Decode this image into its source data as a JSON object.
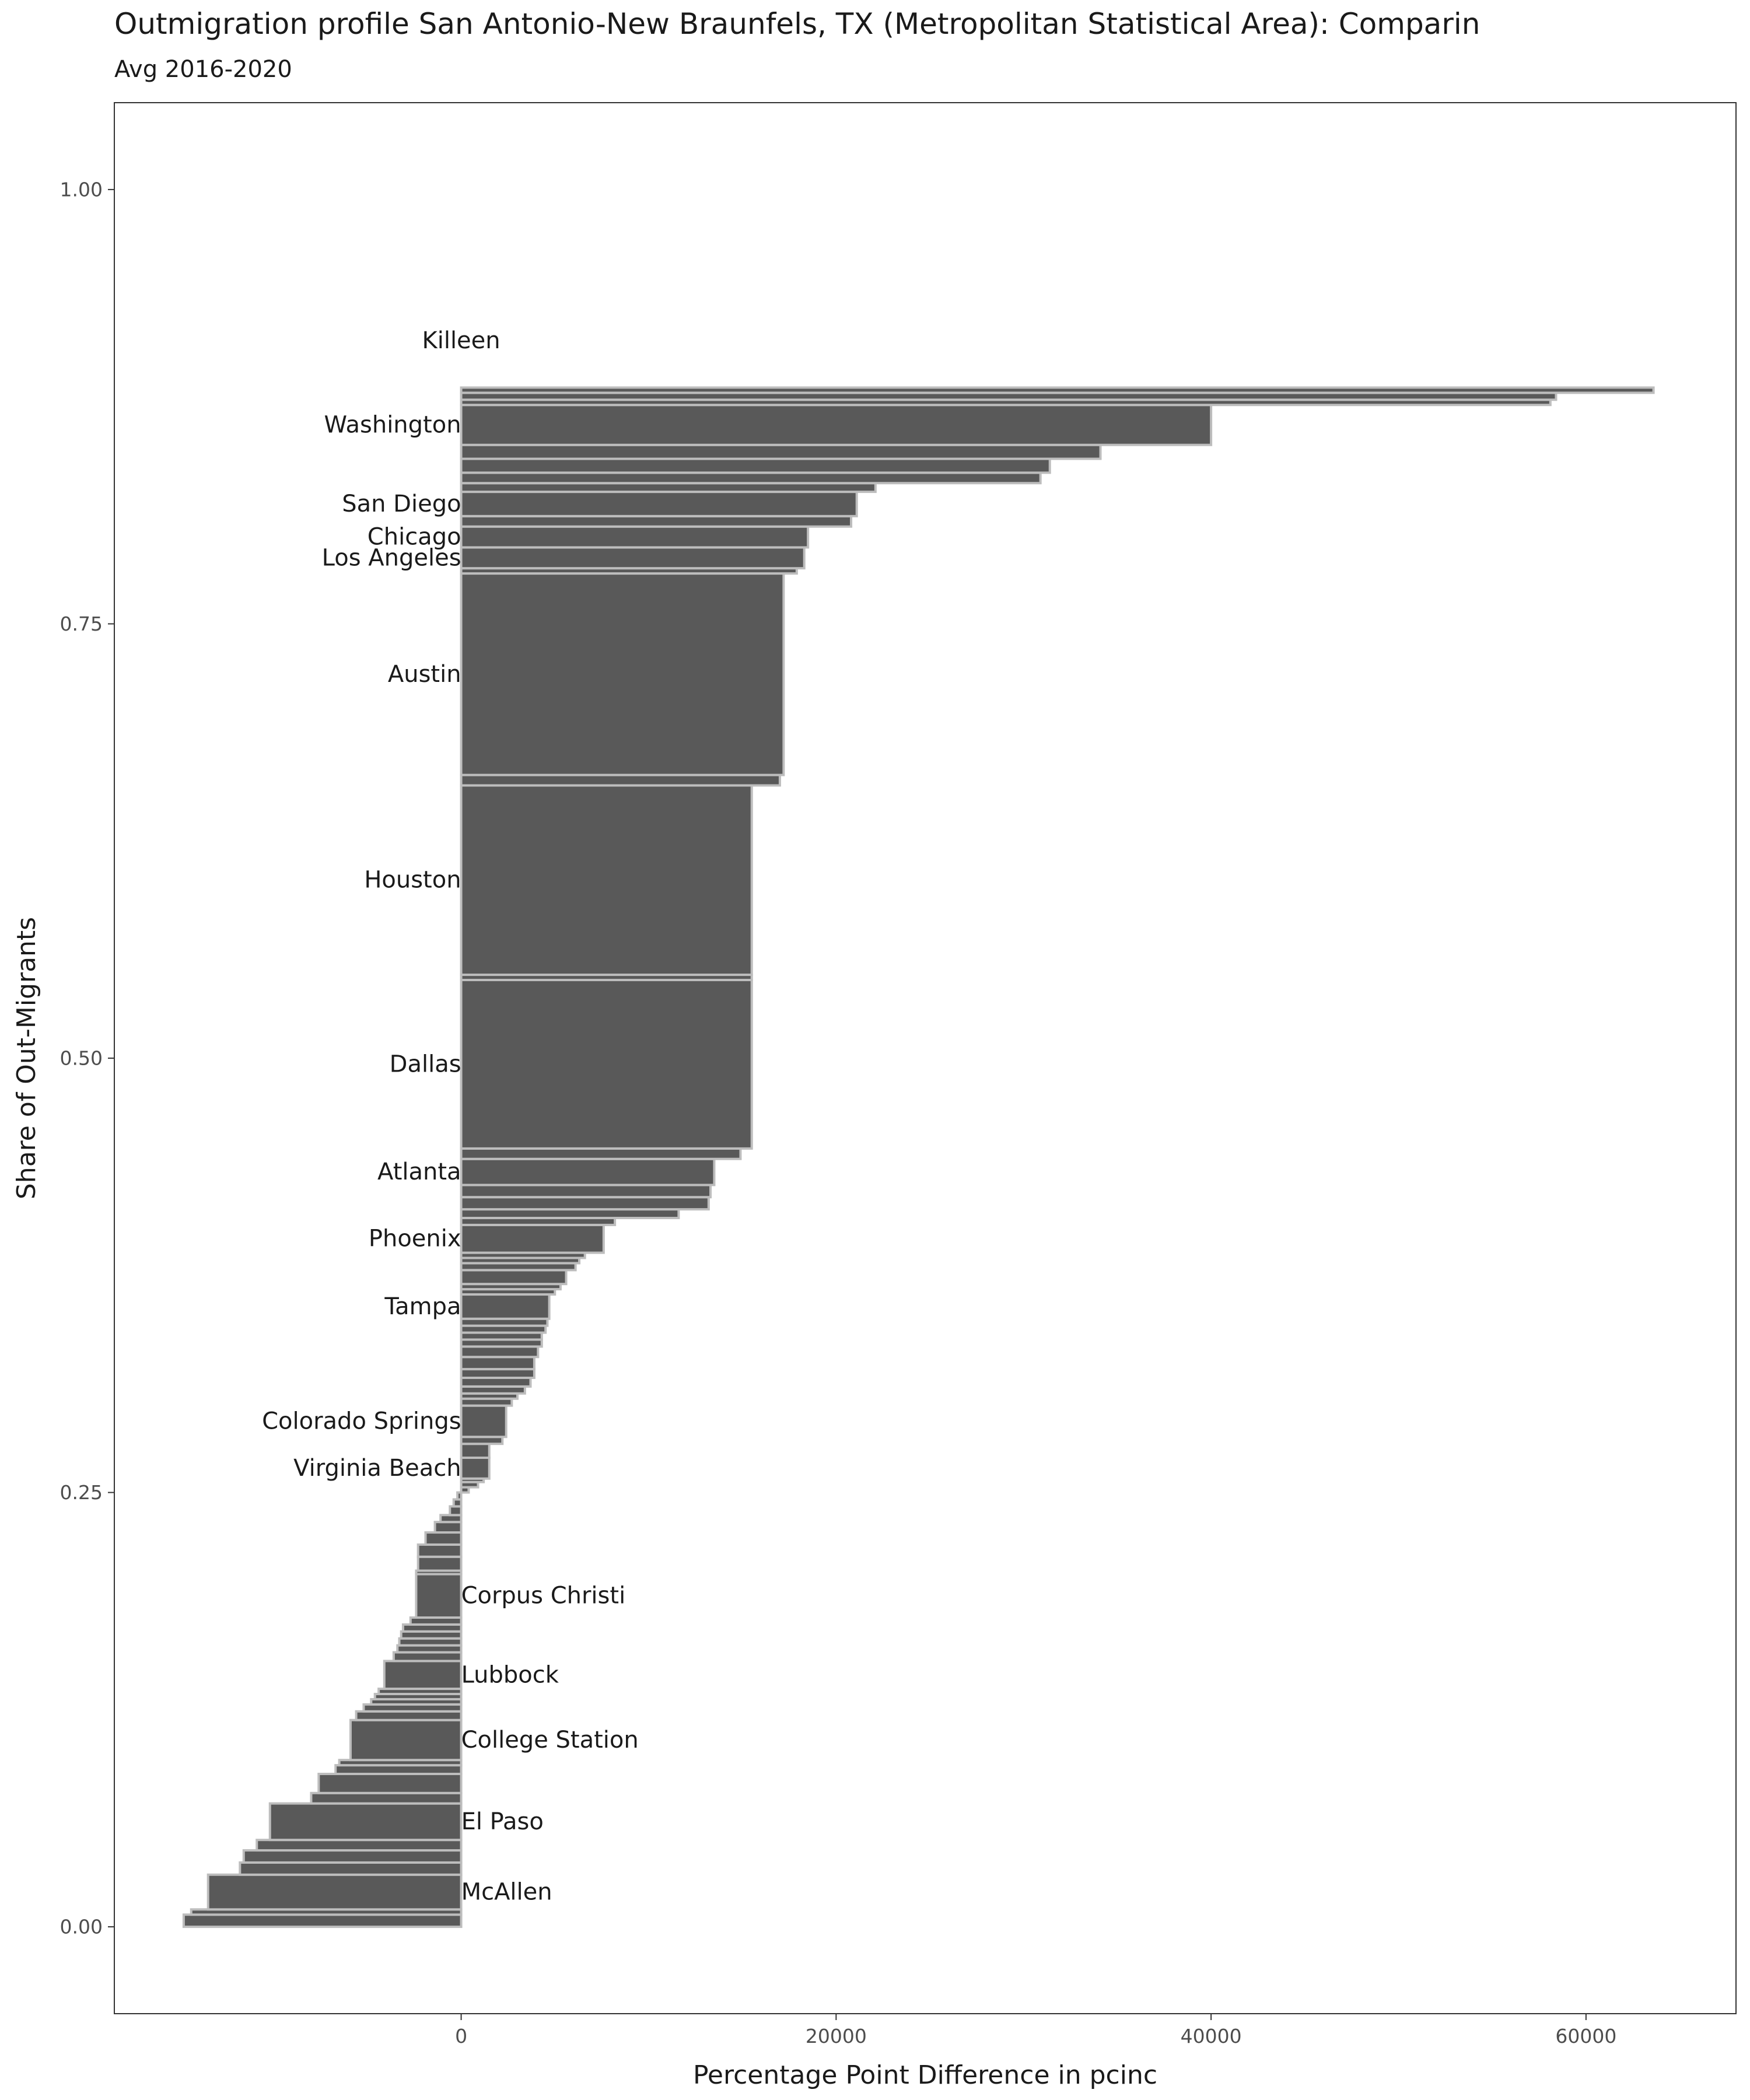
{
  "chart_data": {
    "type": "bar",
    "title": "Outmigration profile San Antonio-New Braunfels, TX (Metropolitan Statistical Area): Comparin",
    "subtitle": "Avg 2016-2020",
    "xlabel": "Percentage Point Difference in pcinc",
    "ylabel": "Share of Out-Migrants",
    "xlim": [
      -18500,
      68000
    ],
    "ylim": [
      -0.05,
      1.05
    ],
    "xticks": [
      0,
      20000,
      40000,
      60000
    ],
    "xtick_labels": [
      "0",
      "20000",
      "40000",
      "60000"
    ],
    "yticks": [
      0.0,
      0.25,
      0.5,
      0.75,
      1.0
    ],
    "ytick_labels": [
      "0.00",
      "0.25",
      "0.50",
      "0.75",
      "1.00"
    ],
    "grid": false,
    "fill_color": "#595959",
    "border_color": "#bdbdbd",
    "bars": [
      {
        "y0": 0.0,
        "y1": 0.007,
        "value": -14800,
        "label": ""
      },
      {
        "y0": 0.007,
        "y1": 0.01,
        "value": -14400,
        "label": ""
      },
      {
        "y0": 0.01,
        "y1": 0.03,
        "value": -13500,
        "label": "McAllen"
      },
      {
        "y0": 0.03,
        "y1": 0.037,
        "value": -11800,
        "label": ""
      },
      {
        "y0": 0.037,
        "y1": 0.044,
        "value": -11600,
        "label": ""
      },
      {
        "y0": 0.044,
        "y1": 0.05,
        "value": -10900,
        "label": ""
      },
      {
        "y0": 0.05,
        "y1": 0.071,
        "value": -10200,
        "label": "El Paso"
      },
      {
        "y0": 0.071,
        "y1": 0.077,
        "value": -8000,
        "label": ""
      },
      {
        "y0": 0.077,
        "y1": 0.088,
        "value": -7600,
        "label": ""
      },
      {
        "y0": 0.088,
        "y1": 0.093,
        "value": -6700,
        "label": ""
      },
      {
        "y0": 0.093,
        "y1": 0.096,
        "value": -6500,
        "label": ""
      },
      {
        "y0": 0.096,
        "y1": 0.119,
        "value": -5900,
        "label": "College Station"
      },
      {
        "y0": 0.119,
        "y1": 0.124,
        "value": -5600,
        "label": ""
      },
      {
        "y0": 0.124,
        "y1": 0.128,
        "value": -5200,
        "label": ""
      },
      {
        "y0": 0.128,
        "y1": 0.131,
        "value": -4800,
        "label": ""
      },
      {
        "y0": 0.131,
        "y1": 0.134,
        "value": -4600,
        "label": ""
      },
      {
        "y0": 0.134,
        "y1": 0.137,
        "value": -4400,
        "label": ""
      },
      {
        "y0": 0.137,
        "y1": 0.153,
        "value": -4100,
        "label": "Lubbock"
      },
      {
        "y0": 0.153,
        "y1": 0.158,
        "value": -3600,
        "label": ""
      },
      {
        "y0": 0.158,
        "y1": 0.162,
        "value": -3400,
        "label": ""
      },
      {
        "y0": 0.162,
        "y1": 0.166,
        "value": -3300,
        "label": ""
      },
      {
        "y0": 0.166,
        "y1": 0.17,
        "value": -3200,
        "label": ""
      },
      {
        "y0": 0.17,
        "y1": 0.174,
        "value": -3100,
        "label": ""
      },
      {
        "y0": 0.174,
        "y1": 0.178,
        "value": -2700,
        "label": ""
      },
      {
        "y0": 0.178,
        "y1": 0.203,
        "value": -2400,
        "label": "Corpus Christi"
      },
      {
        "y0": 0.203,
        "y1": 0.205,
        "value": -2400,
        "label": ""
      },
      {
        "y0": 0.205,
        "y1": 0.213,
        "value": -2300,
        "label": ""
      },
      {
        "y0": 0.213,
        "y1": 0.22,
        "value": -2300,
        "label": ""
      },
      {
        "y0": 0.22,
        "y1": 0.227,
        "value": -1900,
        "label": ""
      },
      {
        "y0": 0.227,
        "y1": 0.233,
        "value": -1400,
        "label": ""
      },
      {
        "y0": 0.233,
        "y1": 0.237,
        "value": -1100,
        "label": ""
      },
      {
        "y0": 0.237,
        "y1": 0.242,
        "value": -600,
        "label": ""
      },
      {
        "y0": 0.242,
        "y1": 0.246,
        "value": -400,
        "label": ""
      },
      {
        "y0": 0.246,
        "y1": 0.25,
        "value": -200,
        "label": ""
      },
      {
        "y0": 0.25,
        "y1": 0.253,
        "value": 400,
        "label": ""
      },
      {
        "y0": 0.253,
        "y1": 0.256,
        "value": 900,
        "label": ""
      },
      {
        "y0": 0.256,
        "y1": 0.258,
        "value": 1200,
        "label": ""
      },
      {
        "y0": 0.258,
        "y1": 0.27,
        "value": 1500,
        "label": "Virginia Beach"
      },
      {
        "y0": 0.27,
        "y1": 0.278,
        "value": 1500,
        "label": ""
      },
      {
        "y0": 0.278,
        "y1": 0.282,
        "value": 2200,
        "label": ""
      },
      {
        "y0": 0.282,
        "y1": 0.3,
        "value": 2400,
        "label": "Colorado Springs"
      },
      {
        "y0": 0.3,
        "y1": 0.304,
        "value": 2700,
        "label": ""
      },
      {
        "y0": 0.304,
        "y1": 0.307,
        "value": 3000,
        "label": ""
      },
      {
        "y0": 0.307,
        "y1": 0.311,
        "value": 3400,
        "label": ""
      },
      {
        "y0": 0.311,
        "y1": 0.316,
        "value": 3700,
        "label": ""
      },
      {
        "y0": 0.316,
        "y1": 0.321,
        "value": 3900,
        "label": ""
      },
      {
        "y0": 0.321,
        "y1": 0.328,
        "value": 3900,
        "label": ""
      },
      {
        "y0": 0.328,
        "y1": 0.334,
        "value": 4100,
        "label": ""
      },
      {
        "y0": 0.334,
        "y1": 0.338,
        "value": 4300,
        "label": ""
      },
      {
        "y0": 0.338,
        "y1": 0.342,
        "value": 4300,
        "label": ""
      },
      {
        "y0": 0.342,
        "y1": 0.346,
        "value": 4500,
        "label": ""
      },
      {
        "y0": 0.346,
        "y1": 0.35,
        "value": 4600,
        "label": ""
      },
      {
        "y0": 0.35,
        "y1": 0.364,
        "value": 4700,
        "label": "Tampa"
      },
      {
        "y0": 0.364,
        "y1": 0.367,
        "value": 5000,
        "label": ""
      },
      {
        "y0": 0.367,
        "y1": 0.37,
        "value": 5300,
        "label": ""
      },
      {
        "y0": 0.37,
        "y1": 0.378,
        "value": 5600,
        "label": ""
      },
      {
        "y0": 0.378,
        "y1": 0.382,
        "value": 6100,
        "label": ""
      },
      {
        "y0": 0.382,
        "y1": 0.385,
        "value": 6300,
        "label": ""
      },
      {
        "y0": 0.385,
        "y1": 0.388,
        "value": 6600,
        "label": ""
      },
      {
        "y0": 0.388,
        "y1": 0.404,
        "value": 7600,
        "label": "Phoenix"
      },
      {
        "y0": 0.404,
        "y1": 0.408,
        "value": 8200,
        "label": ""
      },
      {
        "y0": 0.408,
        "y1": 0.413,
        "value": 11600,
        "label": ""
      },
      {
        "y0": 0.413,
        "y1": 0.42,
        "value": 13200,
        "label": ""
      },
      {
        "y0": 0.42,
        "y1": 0.427,
        "value": 13300,
        "label": ""
      },
      {
        "y0": 0.427,
        "y1": 0.442,
        "value": 13500,
        "label": "Atlanta"
      },
      {
        "y0": 0.442,
        "y1": 0.448,
        "value": 14900,
        "label": ""
      },
      {
        "y0": 0.448,
        "y1": 0.545,
        "value": 15500,
        "label": "Dallas"
      },
      {
        "y0": 0.545,
        "y1": 0.548,
        "value": 15500,
        "label": ""
      },
      {
        "y0": 0.548,
        "y1": 0.657,
        "value": 15500,
        "label": "Houston"
      },
      {
        "y0": 0.657,
        "y1": 0.663,
        "value": 17000,
        "label": ""
      },
      {
        "y0": 0.663,
        "y1": 0.779,
        "value": 17200,
        "label": "Austin"
      },
      {
        "y0": 0.779,
        "y1": 0.782,
        "value": 17900,
        "label": ""
      },
      {
        "y0": 0.782,
        "y1": 0.794,
        "value": 18300,
        "label": "Los Angeles"
      },
      {
        "y0": 0.794,
        "y1": 0.806,
        "value": 18500,
        "label": "Chicago"
      },
      {
        "y0": 0.806,
        "y1": 0.812,
        "value": 20800,
        "label": ""
      },
      {
        "y0": 0.812,
        "y1": 0.826,
        "value": 21100,
        "label": "San Diego"
      },
      {
        "y0": 0.826,
        "y1": 0.831,
        "value": 22100,
        "label": ""
      },
      {
        "y0": 0.831,
        "y1": 0.837,
        "value": 30900,
        "label": ""
      },
      {
        "y0": 0.837,
        "y1": 0.845,
        "value": 31400,
        "label": ""
      },
      {
        "y0": 0.845,
        "y1": 0.853,
        "value": 34100,
        "label": ""
      },
      {
        "y0": 0.853,
        "y1": 0.876,
        "value": 40000,
        "label": "Washington"
      },
      {
        "y0": 0.876,
        "y1": 0.879,
        "value": 58100,
        "label": ""
      },
      {
        "y0": 0.879,
        "y1": 0.883,
        "value": 58400,
        "label": ""
      },
      {
        "y0": 0.883,
        "y1": 0.886,
        "value": 63600,
        "label": ""
      },
      {
        "y0": 0.886,
        "y1": 0.94,
        "value": 0,
        "label": "Killeen"
      }
    ]
  }
}
